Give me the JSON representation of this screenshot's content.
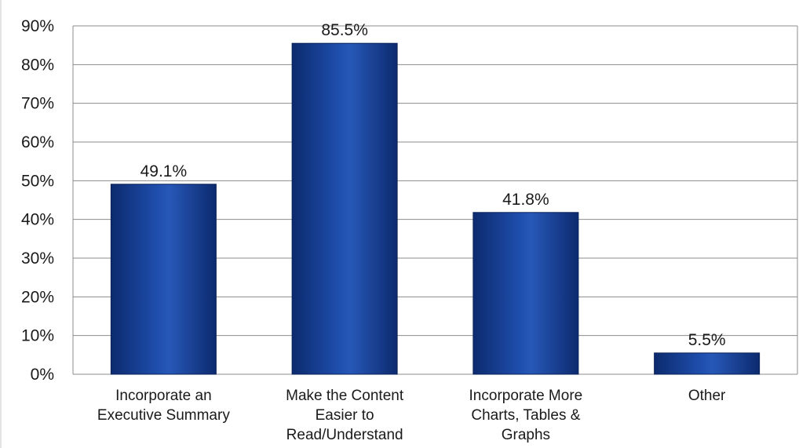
{
  "chart_data": {
    "type": "bar",
    "categories": [
      [
        "Incorporate an",
        "Executive Summary"
      ],
      [
        "Make the Content",
        "Easier to",
        "Read/Understand"
      ],
      [
        "Incorporate More",
        "Charts, Tables &",
        "Graphs"
      ],
      [
        "Other"
      ]
    ],
    "values": [
      49.1,
      85.5,
      41.8,
      5.5
    ],
    "value_labels": [
      "49.1%",
      "85.5%",
      "41.8%",
      "5.5%"
    ],
    "y_ticks": [
      "0%",
      "10%",
      "20%",
      "30%",
      "40%",
      "50%",
      "60%",
      "70%",
      "80%",
      "90%"
    ],
    "ylim": [
      0,
      90
    ],
    "grid": true,
    "title": "",
    "xlabel": "",
    "ylabel": "",
    "colors": {
      "bar_dark": "#0c2a6e",
      "bar_mid": "#1a4aa6",
      "bar_light": "#2f63c4",
      "grid": "#8c8c8c",
      "border": "#8c8c8c",
      "text": "#1a1a1a"
    }
  }
}
